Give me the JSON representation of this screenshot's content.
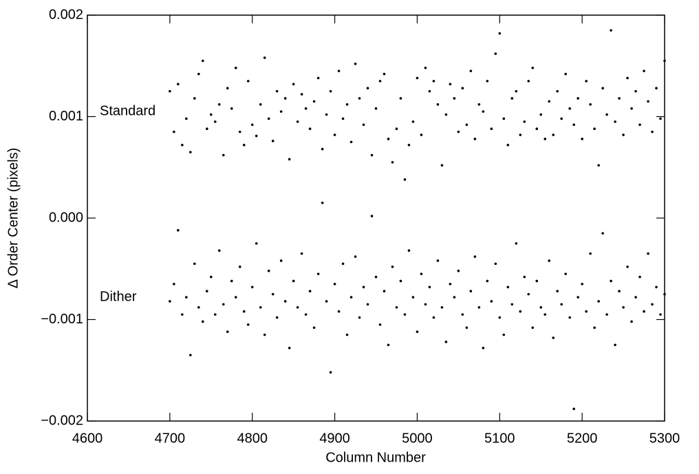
{
  "chart_data": {
    "type": "scatter",
    "xlabel": "Column Number",
    "ylabel": "Δ Order Center (pixels)",
    "annotations": [
      "Standard",
      "Dither"
    ],
    "xlim": [
      4600,
      5300
    ],
    "ylim": [
      -0.002,
      0.002
    ],
    "xticks": [
      4600,
      4700,
      4800,
      4900,
      5000,
      5100,
      5200,
      5300
    ],
    "yticks": [
      {
        "value": -0.002,
        "label": "−0.002"
      },
      {
        "value": -0.001,
        "label": "−0.001"
      },
      {
        "value": 0,
        "label": "0.000"
      },
      0.001,
      0.002
    ],
    "x": [
      4700,
      4705,
      4710,
      4715,
      4720,
      4725,
      4730,
      4735,
      4740,
      4745,
      4750,
      4755,
      4760,
      4765,
      4770,
      4775,
      4780,
      4785,
      4790,
      4795,
      4800,
      4805,
      4810,
      4815,
      4820,
      4825,
      4830,
      4835,
      4840,
      4845,
      4850,
      4855,
      4860,
      4865,
      4870,
      4875,
      4880,
      4885,
      4890,
      4895,
      4900,
      4905,
      4910,
      4915,
      4920,
      4925,
      4930,
      4935,
      4940,
      4945,
      4950,
      4955,
      4960,
      4965,
      4970,
      4975,
      4980,
      4985,
      4990,
      4995,
      5000,
      5005,
      5010,
      5015,
      5020,
      5025,
      5030,
      5035,
      5040,
      5045,
      5050,
      5055,
      5060,
      5065,
      5070,
      5075,
      5080,
      5085,
      5090,
      5095,
      5100,
      5105,
      5110,
      5115,
      5120,
      5125,
      5130,
      5135,
      5140,
      5145,
      5150,
      5155,
      5160,
      5165,
      5170,
      5175,
      5180,
      5185,
      5190,
      5195,
      5200,
      5205,
      5210,
      5215,
      5220,
      5225,
      5230,
      5235,
      5240,
      5245,
      5250,
      5255,
      5260,
      5265,
      5270,
      5275,
      5280,
      5285,
      5290,
      5295,
      5300
    ],
    "series": [
      {
        "name": "Standard",
        "color": "#000000",
        "values": [
          0.00125,
          0.00085,
          0.00132,
          0.00072,
          0.00098,
          0.00065,
          0.00118,
          0.00142,
          0.00155,
          0.00088,
          0.00102,
          0.00095,
          0.00112,
          0.00062,
          0.00128,
          0.00108,
          0.00148,
          0.00085,
          0.00072,
          0.00135,
          0.00092,
          0.00081,
          0.00112,
          0.00158,
          0.00098,
          0.00076,
          0.00125,
          0.00105,
          0.00118,
          0.00058,
          0.00132,
          0.00095,
          0.00122,
          0.00108,
          0.00088,
          0.00115,
          0.00138,
          0.00068,
          0.00102,
          0.00125,
          0.00082,
          0.00145,
          0.00098,
          0.00112,
          0.00075,
          0.00152,
          0.00118,
          0.00092,
          0.00128,
          0.00062,
          0.00108,
          0.00135,
          0.00142,
          0.00078,
          0.00055,
          0.00088,
          0.00118,
          0.00038,
          0.00072,
          0.00095,
          0.00138,
          0.00082,
          0.00148,
          0.00125,
          0.00135,
          0.00112,
          0.00052,
          0.00102,
          0.00132,
          0.00118,
          0.00085,
          0.00128,
          0.00092,
          0.00145,
          0.00078,
          0.00112,
          0.00105,
          0.00135,
          0.00088,
          0.00162,
          0.00182,
          0.00098,
          0.00072,
          0.00118,
          0.00125,
          0.00082,
          0.00095,
          0.00135,
          0.00148,
          0.00088,
          0.00102,
          0.00078,
          0.00115,
          0.00082,
          0.00125,
          0.00098,
          0.00142,
          0.00108,
          0.00092,
          0.00118,
          0.00078,
          0.00135,
          0.00112,
          0.00088,
          0.00052,
          0.00128,
          0.00102,
          0.00185,
          0.00095,
          0.00118,
          0.00082,
          0.00138,
          0.00108,
          0.00125,
          0.00092,
          0.00145,
          0.00115,
          0.00085,
          0.00128,
          0.00098,
          0.00155
        ]
      },
      {
        "name": "Dither",
        "color": "#000000",
        "values": [
          -0.00082,
          -0.00065,
          -0.00012,
          -0.00095,
          -0.00078,
          -0.00135,
          -0.00045,
          -0.00088,
          -0.00102,
          -0.00072,
          -0.00058,
          -0.00095,
          -0.00032,
          -0.00085,
          -0.00112,
          -0.00062,
          -0.00078,
          -0.00048,
          -0.00092,
          -0.00105,
          -0.00068,
          -0.00025,
          -0.00088,
          -0.00115,
          -0.00052,
          -0.00075,
          -0.00098,
          -0.00042,
          -0.00082,
          -0.00128,
          -0.00062,
          -0.00088,
          -0.00035,
          -0.00095,
          -0.00072,
          -0.00108,
          -0.00055,
          0.00015,
          -0.00082,
          -0.00152,
          -0.00065,
          -0.00092,
          -0.00045,
          -0.00115,
          -0.00078,
          -0.00038,
          -0.00098,
          -0.00068,
          -0.00085,
          2e-05,
          -0.00058,
          -0.00105,
          -0.00072,
          -0.00125,
          -0.00048,
          -0.00088,
          -0.00062,
          -0.00095,
          -0.00032,
          -0.00078,
          -0.00112,
          -0.00055,
          -0.00085,
          -0.00068,
          -0.00098,
          -0.00042,
          -0.00088,
          -0.00122,
          -0.00065,
          -0.00078,
          -0.00052,
          -0.00095,
          -0.00108,
          -0.00072,
          -0.00038,
          -0.00088,
          -0.00128,
          -0.00062,
          -0.00082,
          -0.00045,
          -0.00098,
          -0.00115,
          -0.00068,
          -0.00085,
          -0.00025,
          -0.00092,
          -0.00058,
          -0.00075,
          -0.00108,
          -0.00062,
          -0.00088,
          -0.00095,
          -0.00042,
          -0.00118,
          -0.00072,
          -0.00085,
          -0.00055,
          -0.00098,
          -0.00188,
          -0.00078,
          -0.00065,
          -0.00092,
          -0.00035,
          -0.00108,
          -0.00082,
          -0.00015,
          -0.00095,
          -0.00062,
          -0.00125,
          -0.00072,
          -0.00088,
          -0.00048,
          -0.00102,
          -0.00078,
          -0.00058,
          -0.00092,
          -0.00035,
          -0.00085,
          -0.00068,
          -0.00095,
          -0.00075
        ]
      }
    ]
  }
}
